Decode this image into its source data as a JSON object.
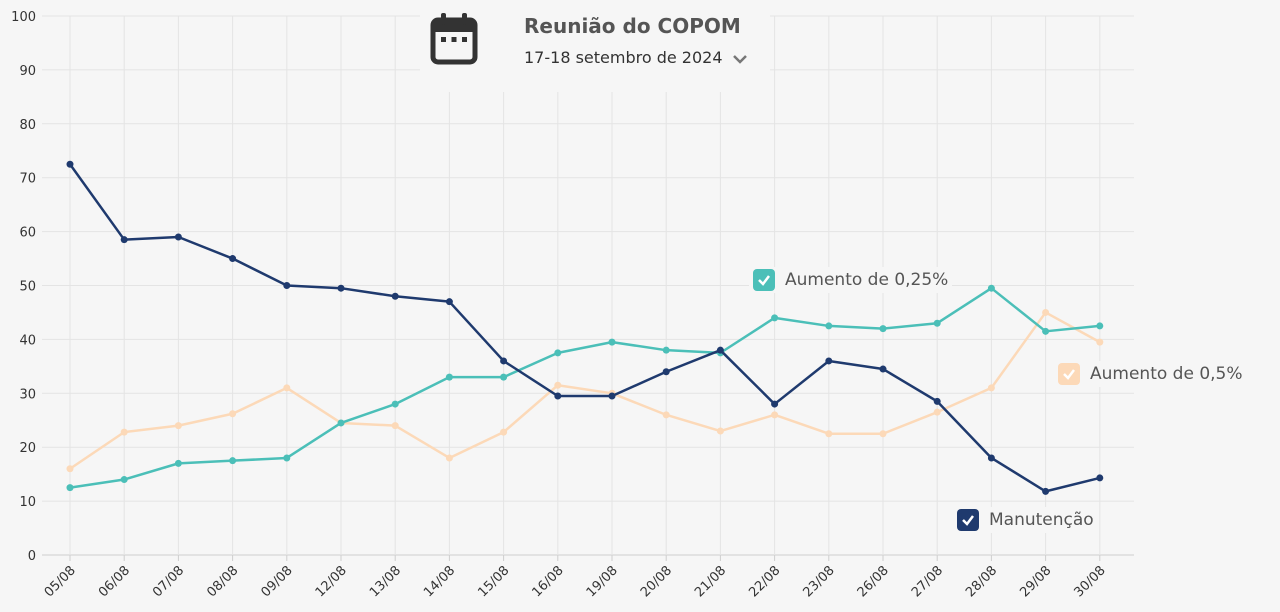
{
  "meeting": {
    "title": "Reunião do COPOM",
    "date": "17-18 setembro de 2024",
    "icon": "calendar-icon"
  },
  "legend": {
    "aumento025": "Aumento de 0,25%",
    "aumento05": "Aumento de 0,5%",
    "manutencao": "Manutenção"
  },
  "colors": {
    "manutencao": "#1f3a6e",
    "aumento025": "#4bbfb8",
    "aumento05": "#fcd9b8"
  },
  "chart_data": {
    "type": "line",
    "x": [
      "05/08",
      "06/08",
      "07/08",
      "08/08",
      "09/08",
      "12/08",
      "13/08",
      "14/08",
      "15/08",
      "16/08",
      "19/08",
      "20/08",
      "21/08",
      "22/08",
      "23/08",
      "26/08",
      "27/08",
      "28/08",
      "29/08",
      "30/08"
    ],
    "ylim": [
      0,
      100
    ],
    "yticks": [
      0,
      10,
      20,
      30,
      40,
      50,
      60,
      70,
      80,
      90,
      100
    ],
    "grid": true,
    "series": [
      {
        "name": "Manutenção",
        "key": "manutencao",
        "values": [
          72.5,
          58.5,
          59,
          55,
          50,
          49.5,
          48,
          47,
          36,
          29.5,
          29.5,
          34,
          38,
          28,
          36,
          34.5,
          28.5,
          18,
          11.8,
          14.3
        ]
      },
      {
        "name": "Aumento de 0,25%",
        "key": "aumento025",
        "values": [
          12.5,
          14,
          17,
          17.5,
          18,
          24.5,
          28,
          33,
          33,
          37.5,
          39.5,
          38,
          37.5,
          44,
          42.5,
          42,
          43,
          49.5,
          41.5,
          42.5
        ]
      },
      {
        "name": "Aumento de 0,5%",
        "key": "aumento05",
        "values": [
          16,
          22.8,
          24,
          26.2,
          31,
          24.5,
          24,
          18,
          22.8,
          31.5,
          30,
          26,
          23,
          26,
          22.5,
          22.5,
          26.5,
          31,
          45,
          39.5
        ]
      }
    ]
  }
}
